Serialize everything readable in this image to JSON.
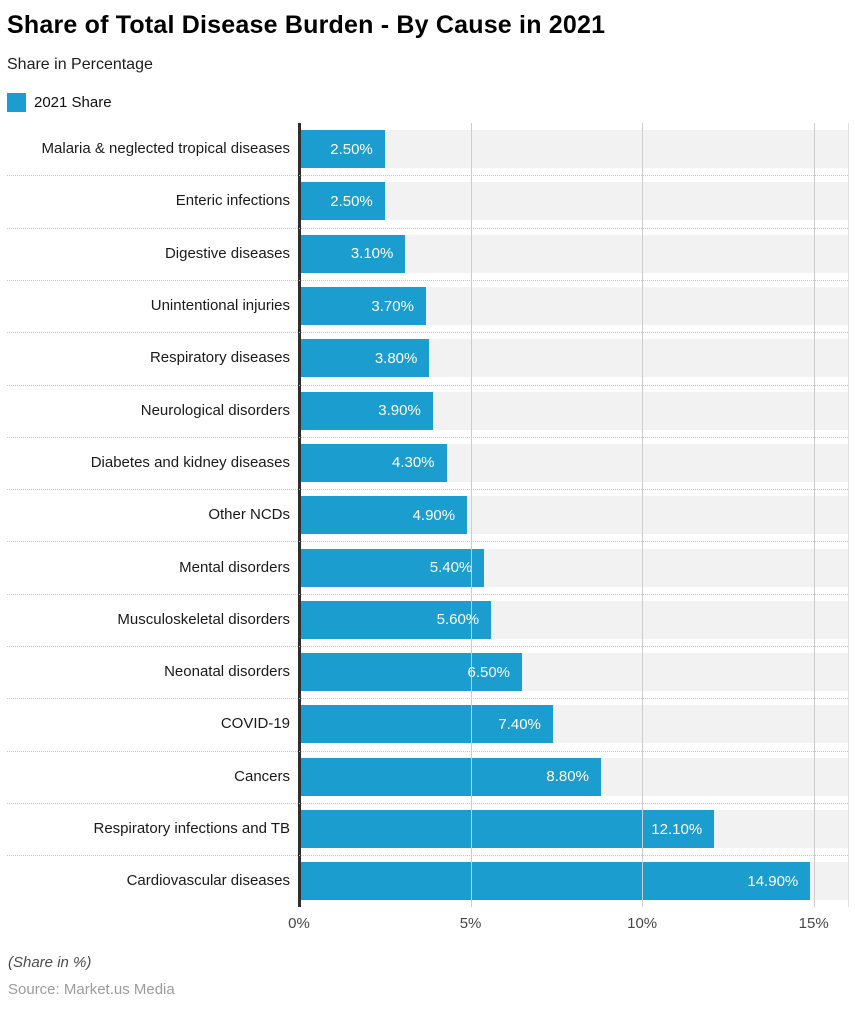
{
  "header": {
    "title": "Share of Total Disease Burden - By Cause in 2021",
    "subtitle": "Share in Percentage"
  },
  "legend": {
    "label": "2021 Share",
    "swatch_color": "#1b9dcf"
  },
  "chart_data": {
    "type": "bar",
    "orientation": "horizontal",
    "title": "Share of Total Disease Burden - By Cause in 2021",
    "subtitle": "Share in Percentage",
    "legend_entries": [
      "2021 Share"
    ],
    "legend_position": "top-left",
    "categories": [
      "Malaria & neglected tropical diseases",
      "Enteric infections",
      "Digestive diseases",
      "Unintentional injuries",
      "Respiratory diseases",
      "Neurological disorders",
      "Diabetes and kidney diseases",
      "Other NCDs",
      "Mental disorders",
      "Musculoskeletal disorders",
      "Neonatal disorders",
      "COVID-19",
      "Cancers",
      "Respiratory infections and TB",
      "Cardiovascular diseases"
    ],
    "values": [
      2.5,
      2.5,
      3.1,
      3.7,
      3.8,
      3.9,
      4.3,
      4.9,
      5.4,
      5.6,
      6.5,
      7.4,
      8.8,
      12.1,
      14.9
    ],
    "value_labels": [
      "2.50%",
      "2.50%",
      "3.10%",
      "3.70%",
      "3.80%",
      "3.90%",
      "4.30%",
      "4.90%",
      "5.40%",
      "5.60%",
      "6.50%",
      "7.40%",
      "8.80%",
      "12.10%",
      "14.90%"
    ],
    "xlabel": "",
    "ylabel": "",
    "xlim": [
      0,
      16
    ],
    "x_ticks": [
      {
        "value": 0,
        "label": "0%"
      },
      {
        "value": 5,
        "label": "5%"
      },
      {
        "value": 10,
        "label": "10%"
      },
      {
        "value": 15,
        "label": "15%"
      }
    ],
    "grid": "vertical-on",
    "bar_color": "#1b9dcf",
    "track_color": "#f2f2f2"
  },
  "footer": {
    "note": "(Share in %)",
    "source": "Source: Market.us Media"
  }
}
